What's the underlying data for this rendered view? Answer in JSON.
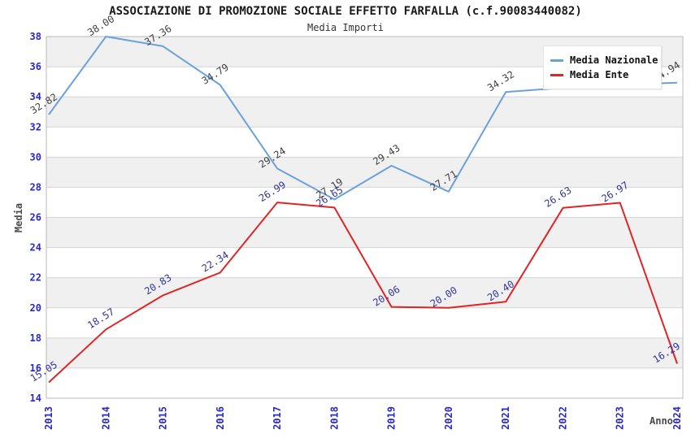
{
  "title": "ASSOCIAZIONE DI PROMOZIONE SOCIALE EFFETTO FARFALLA (c.f.90083440082)",
  "subtitle": "Media Importi",
  "chart_data": {
    "type": "line",
    "x": [
      2013,
      2014,
      2015,
      2016,
      2017,
      2018,
      2019,
      2020,
      2021,
      2022,
      2023,
      2024
    ],
    "xlabel": "Anno",
    "ylabel": "Media",
    "ylim": [
      14,
      38
    ],
    "ytick_step": 2,
    "grid": true,
    "legend_position": "top-right",
    "band_colors": [
      "#f0f0f0",
      "#ffffff"
    ],
    "gridline_color": "#d4d4d4",
    "plot_border_color": "#b8b8b8",
    "axis_tick_color": "#2828cc",
    "axis_title_color": "#4a4a4a",
    "series": [
      {
        "name": "Media Nazionale",
        "color": "#6ba1da",
        "label_color": "#3f3f3f",
        "values": [
          32.82,
          38.0,
          37.36,
          34.79,
          29.24,
          27.19,
          29.43,
          27.71,
          34.32,
          34.6,
          34.8,
          34.94
        ],
        "labels": [
          "32.82",
          "38.00",
          "37.36",
          "34.79",
          "29.24",
          "27.19",
          "29.43",
          "27.71",
          "34.32",
          "",
          "",
          "34.94"
        ]
      },
      {
        "name": "Media Ente",
        "color": "#e02525",
        "label_color": "#333399",
        "values": [
          15.05,
          18.57,
          20.83,
          22.34,
          26.99,
          26.65,
          20.06,
          20.0,
          20.4,
          26.63,
          26.97,
          16.29
        ],
        "labels": [
          "15.05",
          "18.57",
          "20.83",
          "22.34",
          "26.99",
          "26.65",
          "20.06",
          "20.00",
          "20.40",
          "26.63",
          "26.97",
          "16.29"
        ]
      }
    ]
  }
}
